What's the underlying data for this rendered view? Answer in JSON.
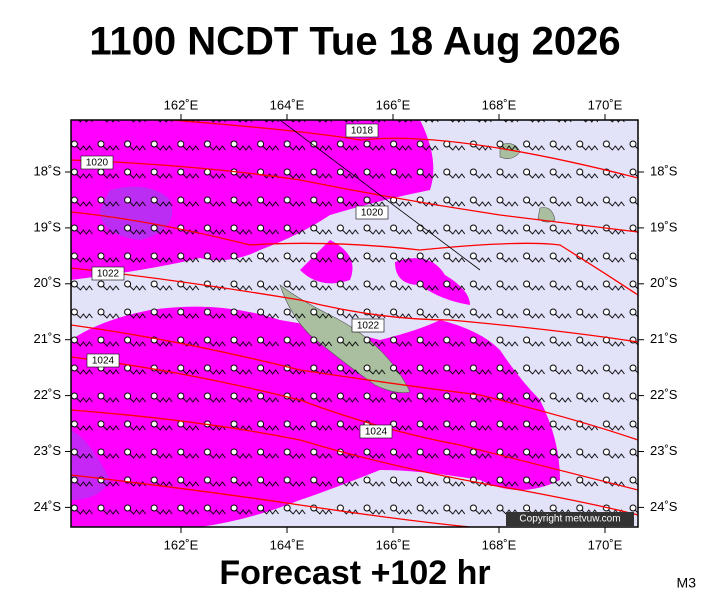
{
  "header": {
    "title": "1100 NCDT Tue 18 Aug 2026"
  },
  "map": {
    "lon_ticks": [
      "162˚E",
      "164˚E",
      "166˚E",
      "168˚E",
      "170˚E"
    ],
    "lat_ticks": [
      "18˚S",
      "19˚S",
      "20˚S",
      "21˚S",
      "22˚S",
      "23˚S",
      "24˚S"
    ],
    "isobar_labels": [
      "1018",
      "1020",
      "1020",
      "1022",
      "1022",
      "1024",
      "1024"
    ],
    "copyright": "Copyright metvuw.com"
  },
  "footer": {
    "forecast": "Forecast +102 hr",
    "model": "M3"
  }
}
